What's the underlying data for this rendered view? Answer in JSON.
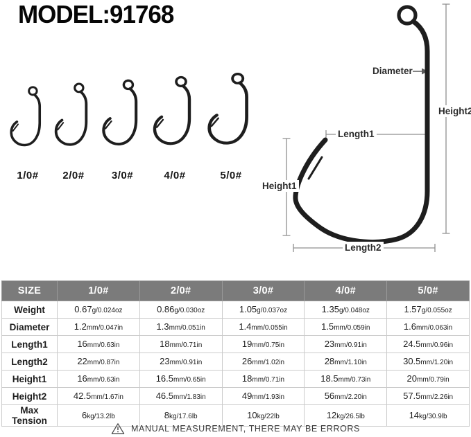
{
  "title": "MODEL:91768",
  "hooks": {
    "sizes": [
      {
        "label": "1/0#"
      },
      {
        "label": "2/0#"
      },
      {
        "label": "3/0#"
      },
      {
        "label": "4/0#"
      },
      {
        "label": "5/0#"
      }
    ]
  },
  "diagram": {
    "labels": {
      "diameter": "Diameter",
      "height2": "Height2",
      "length1": "Length1",
      "height1": "Height1",
      "length2": "Length2"
    }
  },
  "table": {
    "header": [
      "SIZE",
      "1/0#",
      "2/0#",
      "3/0#",
      "4/0#",
      "5/0#"
    ],
    "rows": [
      {
        "label": "Weight",
        "cells": [
          {
            "v": "0.67",
            "u": "g/0.024oz"
          },
          {
            "v": "0.86",
            "u": "g/0.030oz"
          },
          {
            "v": "1.05",
            "u": "g/0.037oz"
          },
          {
            "v": "1.35",
            "u": "g/0.048oz"
          },
          {
            "v": "1.57",
            "u": "g/0.055oz"
          }
        ]
      },
      {
        "label": "Diameter",
        "cells": [
          {
            "v": "1.2",
            "u": "mm/0.047in"
          },
          {
            "v": "1.3",
            "u": "mm/0.051in"
          },
          {
            "v": "1.4",
            "u": "mm/0.055in"
          },
          {
            "v": "1.5",
            "u": "mm/0.059in"
          },
          {
            "v": "1.6",
            "u": "mm/0.063in"
          }
        ]
      },
      {
        "label": "Length1",
        "cells": [
          {
            "v": "16",
            "u": "mm/0.63in"
          },
          {
            "v": "18",
            "u": "mm/0.71in"
          },
          {
            "v": "19",
            "u": "mm/0.75in"
          },
          {
            "v": "23",
            "u": "mm/0.91in"
          },
          {
            "v": "24.5",
            "u": "mm/0.96in"
          }
        ]
      },
      {
        "label": "Length2",
        "cells": [
          {
            "v": "22",
            "u": "mm/0.87in"
          },
          {
            "v": "23",
            "u": "mm/0.91in"
          },
          {
            "v": "26",
            "u": "mm/1.02in"
          },
          {
            "v": "28",
            "u": "mm/1.10in"
          },
          {
            "v": "30.5",
            "u": "mm/1.20in"
          }
        ]
      },
      {
        "label": "Height1",
        "cells": [
          {
            "v": "16",
            "u": "mm/0.63in"
          },
          {
            "v": "16.5",
            "u": "mm/0.65in"
          },
          {
            "v": "18",
            "u": "mm/0.71in"
          },
          {
            "v": "18.5",
            "u": "mm/0.73in"
          },
          {
            "v": "20",
            "u": "mm/0.79in"
          }
        ]
      },
      {
        "label": "Height2",
        "cells": [
          {
            "v": "42.5",
            "u": "mm/1.67in"
          },
          {
            "v": "46.5",
            "u": "mm/1.83in"
          },
          {
            "v": "49",
            "u": "mm/1.93in"
          },
          {
            "v": "56",
            "u": "mm/2.20in"
          },
          {
            "v": "57.5",
            "u": "mm/2.26in"
          }
        ]
      },
      {
        "label": "Max Tension",
        "cells": [
          {
            "v": "6",
            "u": "kg/13.2lb"
          },
          {
            "v": "8",
            "u": "kg/17.6lb"
          },
          {
            "v": "10",
            "u": "kg/22lb"
          },
          {
            "v": "12",
            "u": "kg/26.5lb"
          },
          {
            "v": "14",
            "u": "kg/30.9lb"
          }
        ]
      }
    ]
  },
  "note": {
    "icon": "warning-triangle-icon",
    "text": "MANUAL MEASUREMENT, THERE MAY BE ERRORS"
  },
  "colors": {
    "header_bg": "#7b7b7b",
    "header_text": "#ffffff",
    "grid_line": "#cbcbcb",
    "measure_line": "#8f8f8f",
    "ink": "#1e1e1e"
  }
}
